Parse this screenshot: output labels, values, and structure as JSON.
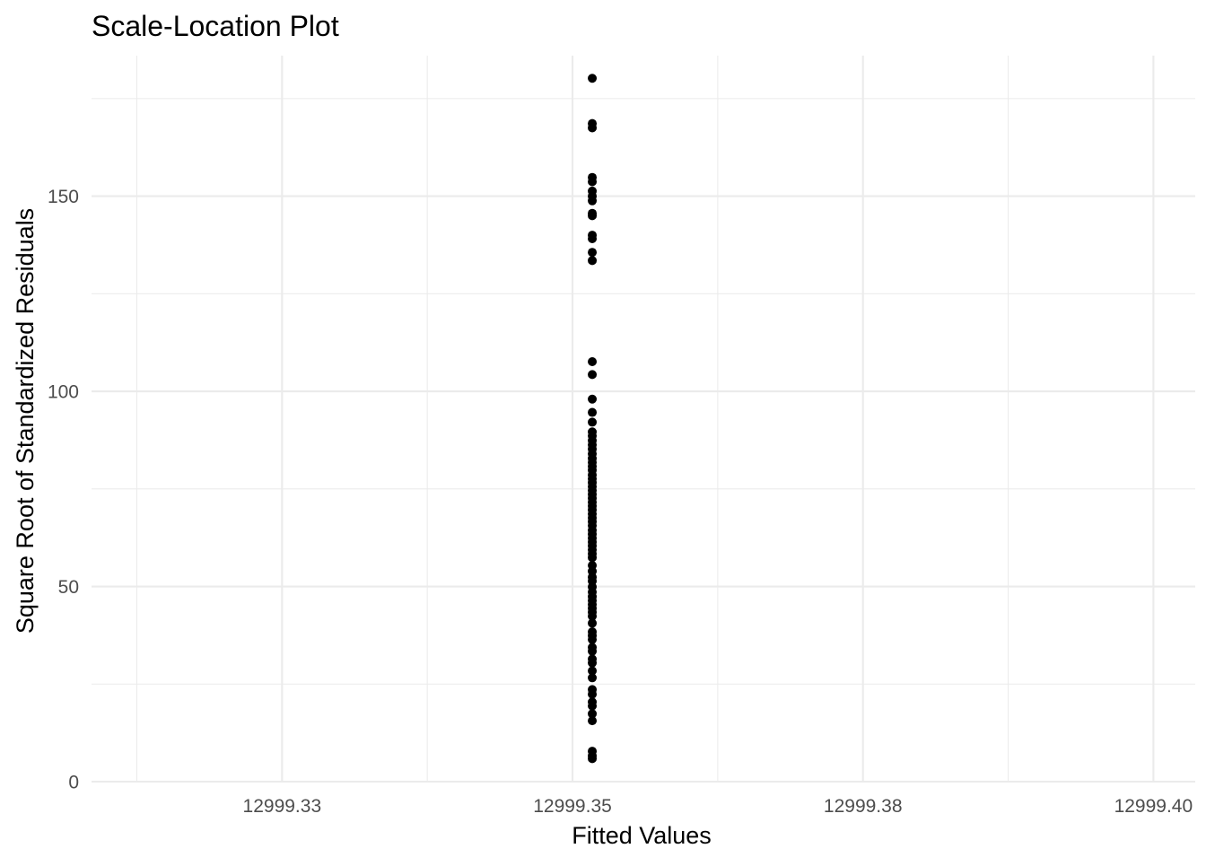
{
  "chart_data": {
    "type": "scatter",
    "title": "Scale-Location Plot",
    "xlabel": "Fitted Values",
    "ylabel": "Square Root of Standardized Residuals",
    "xlim": [
      12999.3086,
      12999.4036
    ],
    "ylim": [
      0,
      186
    ],
    "x_ticks": [
      12999.325,
      12999.35,
      12999.375,
      12999.4
    ],
    "x_tick_labels": [
      "12999.33",
      "12999.35",
      "12999.38",
      "12999.40"
    ],
    "y_ticks": [
      0,
      50,
      100,
      150
    ],
    "y_tick_labels": [
      "0",
      "50",
      "100",
      "150"
    ],
    "grid": true,
    "legend": "none",
    "point_color": "#000000",
    "points": {
      "x": 12999.3517,
      "y": [
        180.2,
        168.6,
        167.5,
        154.8,
        153.7,
        151.3,
        150.0,
        148.8,
        145.6,
        145.0,
        140.0,
        139.1,
        135.6,
        133.5,
        107.6,
        104.3,
        98.0,
        94.6,
        92.1,
        89.6,
        88.6,
        87.4,
        86.3,
        85.2,
        84.0,
        82.8,
        81.8,
        80.8,
        79.8,
        78.6,
        77.6,
        76.6,
        75.6,
        74.6,
        73.6,
        72.6,
        71.6,
        70.6,
        69.6,
        68.6,
        67.6,
        66.6,
        65.6,
        64.4,
        63.4,
        62.4,
        61.4,
        60.4,
        59.4,
        58.4,
        57.4,
        55.4,
        53.9,
        52.4,
        51.4,
        49.9,
        48.6,
        47.4,
        46.4,
        45.4,
        44.4,
        43.4,
        42.4,
        40.6,
        38.4,
        37.4,
        36.4,
        34.4,
        33.4,
        31.4,
        30.4,
        28.4,
        26.6,
        23.6,
        22.4,
        20.4,
        19.4,
        17.4,
        15.6,
        7.8,
        6.6,
        5.9
      ]
    }
  }
}
